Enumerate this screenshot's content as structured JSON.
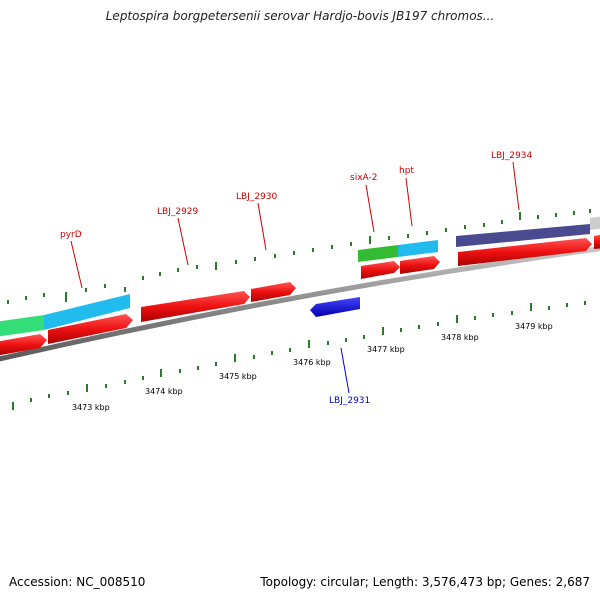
{
  "title": "Leptospira borgpetersenii serovar Hardjo-bovis JB197 chromos...",
  "footer": {
    "accession": "Accession: NC_008510",
    "summary": "Topology: circular; Length: 3,576,473 bp; Genes: 2,687"
  },
  "scale_labels": [
    "3473 kbp",
    "3474 kbp",
    "3475 kbp",
    "3476 kbp",
    "3477 kbp",
    "3478 kbp",
    "3479 kbp"
  ],
  "gene_labels": [
    {
      "text": "pyrD",
      "color": "#cc0000"
    },
    {
      "text": "LBJ_2929",
      "color": "#cc0000"
    },
    {
      "text": "LBJ_2930",
      "color": "#cc0000"
    },
    {
      "text": "sixA-2",
      "color": "#cc0000"
    },
    {
      "text": "hpt",
      "color": "#cc0000"
    },
    {
      "text": "LBJ_2934",
      "color": "#cc0000"
    },
    {
      "text": "LBJ_2931",
      "color": "#0000cc"
    }
  ],
  "colors": {
    "cds_forward": "#ee1111",
    "cds_reverse": "#1111dd",
    "feature_green": "#33cc55",
    "feature_cyan": "#22bbee",
    "feature_purple": "#4a4a90",
    "tick": "#2a7a2a",
    "backbone": "#8a8a8a"
  }
}
